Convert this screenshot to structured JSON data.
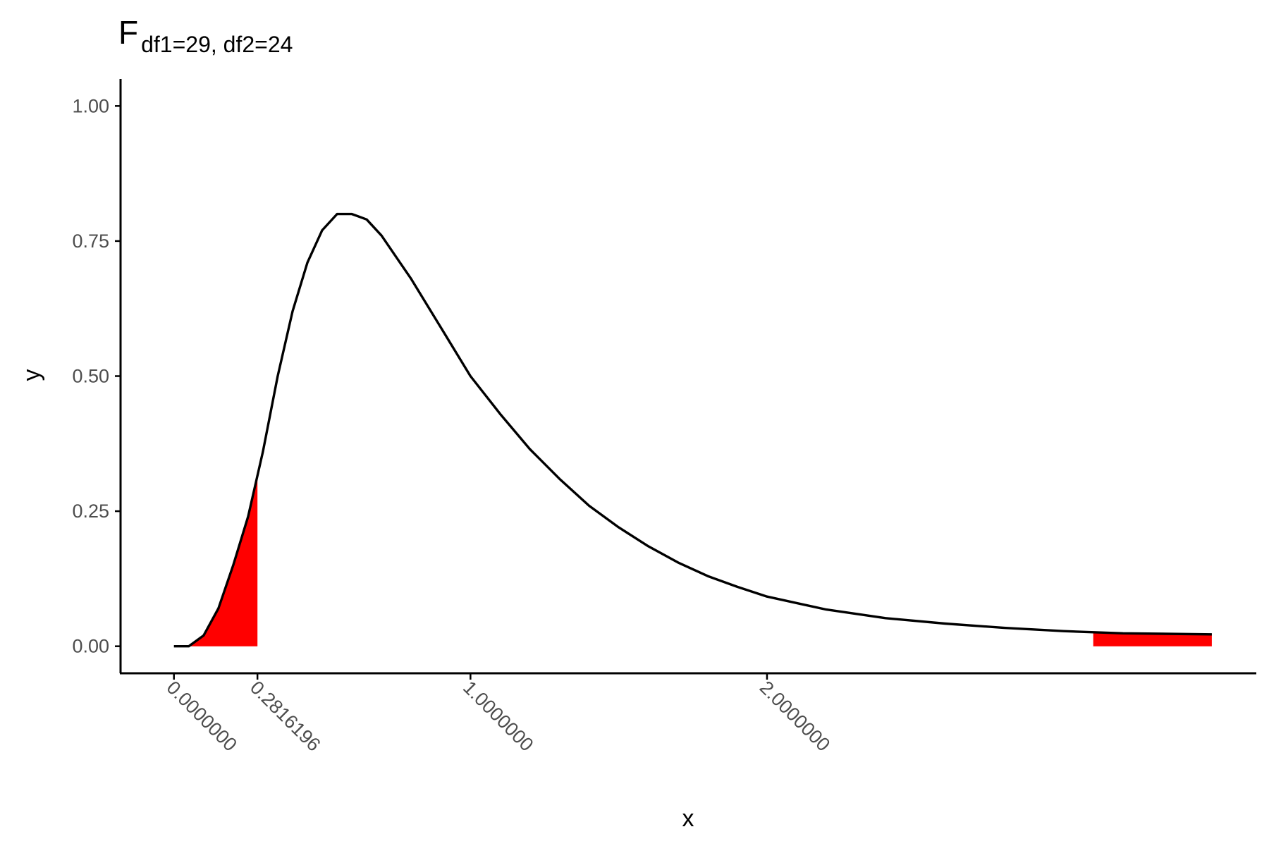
{
  "chart_data": {
    "type": "line",
    "title": "F",
    "title_subscript": "df1=29, df2=24",
    "xlabel": "x",
    "ylabel": "y",
    "xlim": [
      -0.18,
      3.65
    ],
    "ylim": [
      -0.05,
      1.05
    ],
    "grid": false,
    "legend": "none",
    "x_ticks": [
      {
        "value": 0.0,
        "label": "0.0000000"
      },
      {
        "value": 0.2816196,
        "label": "0.2816196"
      },
      {
        "value": 1.0,
        "label": "1.0000000"
      },
      {
        "value": 2.0,
        "label": "2.0000000"
      }
    ],
    "y_ticks": [
      {
        "value": 0.0,
        "label": "0.00"
      },
      {
        "value": 0.25,
        "label": "0.25"
      },
      {
        "value": 0.5,
        "label": "0.50"
      },
      {
        "value": 0.75,
        "label": "0.75"
      },
      {
        "value": 1.0,
        "label": "1.00"
      }
    ],
    "density": {
      "x": [
        0.0,
        0.05,
        0.1,
        0.15,
        0.2,
        0.25,
        0.3,
        0.35,
        0.4,
        0.45,
        0.5,
        0.55,
        0.6,
        0.65,
        0.7,
        0.75,
        0.8,
        0.85,
        0.9,
        0.95,
        1.0,
        1.1,
        1.2,
        1.3,
        1.4,
        1.5,
        1.6,
        1.7,
        1.8,
        1.9,
        2.0,
        2.2,
        2.4,
        2.6,
        2.8,
        3.0,
        3.2,
        3.5
      ],
      "y": [
        0.0,
        0.0,
        0.02,
        0.07,
        0.15,
        0.24,
        0.36,
        0.5,
        0.62,
        0.71,
        0.77,
        0.8,
        0.8,
        0.79,
        0.76,
        0.72,
        0.68,
        0.635,
        0.59,
        0.545,
        0.5,
        0.43,
        0.365,
        0.31,
        0.26,
        0.22,
        0.185,
        0.155,
        0.13,
        0.11,
        0.092,
        0.068,
        0.052,
        0.042,
        0.034,
        0.028,
        0.024,
        0.022
      ]
    },
    "shaded_regions": [
      {
        "from": 0.0,
        "to": 0.2816196,
        "color": "#ff0000"
      },
      {
        "from": 3.1,
        "to": 3.5,
        "color": "#ff0000"
      }
    ],
    "line_color": "#000000",
    "fill_color": "#ff0000"
  }
}
